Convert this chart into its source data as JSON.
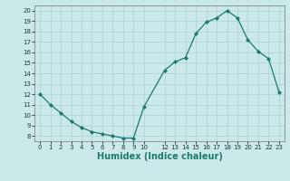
{
  "x_vals": [
    0,
    1,
    2,
    3,
    4,
    5,
    6,
    7,
    8,
    9,
    10,
    12,
    13,
    14,
    15,
    16,
    17,
    18,
    19,
    20,
    21,
    22,
    23
  ],
  "y_vals": [
    12,
    11,
    10.2,
    9.4,
    8.8,
    8.4,
    8.2,
    8.0,
    7.8,
    7.8,
    10.8,
    14.3,
    15.1,
    15.5,
    17.8,
    18.9,
    19.3,
    20.0,
    19.3,
    17.2,
    16.1,
    15.4,
    12.2
  ],
  "xlabel": "Humidex (Indice chaleur)",
  "xlim": [
    -0.5,
    23.5
  ],
  "ylim": [
    7.5,
    20.5
  ],
  "yticks": [
    8,
    9,
    10,
    11,
    12,
    13,
    14,
    15,
    16,
    17,
    18,
    19,
    20
  ],
  "xticks": [
    0,
    1,
    2,
    3,
    4,
    5,
    6,
    7,
    8,
    9,
    10,
    12,
    13,
    14,
    15,
    16,
    17,
    18,
    19,
    20,
    21,
    22,
    23
  ],
  "line_color": "#1a7a6e",
  "marker": "D",
  "marker_size": 2.0,
  "bg_color": "#cce9e9",
  "grid_color": "#aad0d0",
  "figsize": [
    3.2,
    2.0
  ],
  "dpi": 100,
  "xlabel_fontsize": 7,
  "tick_fontsize": 5,
  "ylabel_fontsize": 6
}
